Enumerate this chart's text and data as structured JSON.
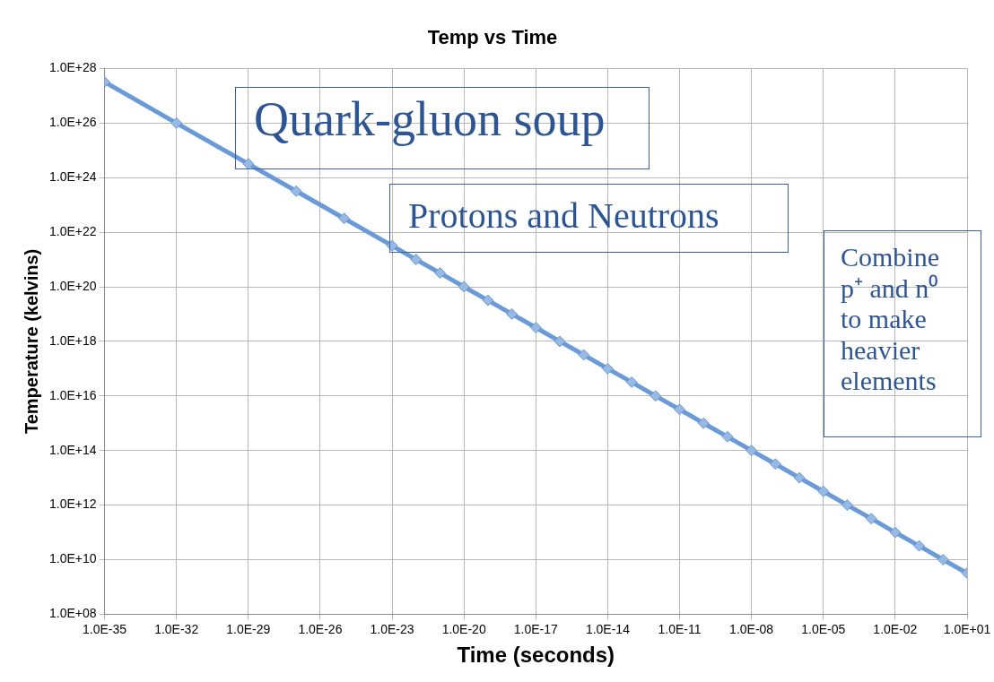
{
  "chart_data": {
    "type": "line",
    "title": "Temp vs Time",
    "xlabel": "Time (seconds)",
    "ylabel": "Temperature (kelvins)",
    "x": [
      1e-35,
      1e-32,
      1e-29,
      1e-27,
      1e-25,
      1e-23,
      1e-22,
      1e-21,
      1e-20,
      1e-19,
      1e-18,
      1e-17,
      1e-16,
      1e-15,
      1e-14,
      1e-13,
      1e-12,
      1e-11,
      1e-10,
      1e-09,
      1e-08,
      1e-07,
      1e-06,
      1e-05,
      0.0001,
      0.001,
      0.01,
      0.1,
      1,
      10
    ],
    "series": [
      {
        "color": "#6a9bd8",
        "values": [
          3.2e+27,
          1e+26,
          3.2e+24,
          3.2e+23,
          3.2e+22,
          3.2e+21,
          1e+21,
          3.2e+20,
          1e+20,
          3.2e+19,
          1e+19,
          3.2e+18,
          1e+18,
          3.2e+17,
          1e+17,
          3.2e+16,
          1e+16,
          3200000000000000.0,
          1000000000000000.0,
          320000000000000.0,
          100000000000000.0,
          32000000000000.0,
          10000000000000.0,
          3200000000000.0,
          1000000000000.0,
          320000000000.0,
          100000000000.0,
          32000000000.0,
          10000000000.0,
          3200000000.0
        ]
      }
    ],
    "log": "xy",
    "xlim": [
      1e-35,
      10
    ],
    "ylim": [
      100000000.0,
      1e+28
    ],
    "xticks": [
      {
        "value": 1e-35,
        "label": "1.0E-35"
      },
      {
        "value": 1e-32,
        "label": "1.0E-32"
      },
      {
        "value": 1e-29,
        "label": "1.0E-29"
      },
      {
        "value": 1e-26,
        "label": "1.0E-26"
      },
      {
        "value": 1e-23,
        "label": "1.0E-23"
      },
      {
        "value": 1e-20,
        "label": "1.0E-20"
      },
      {
        "value": 1e-17,
        "label": "1.0E-17"
      },
      {
        "value": 1e-14,
        "label": "1.0E-14"
      },
      {
        "value": 1e-11,
        "label": "1.0E-11"
      },
      {
        "value": 1e-08,
        "label": "1.0E-08"
      },
      {
        "value": 1e-05,
        "label": "1.0E-05"
      },
      {
        "value": 0.01,
        "label": "1.0E-02"
      },
      {
        "value": 10,
        "label": "1.0E+01"
      }
    ],
    "yticks": [
      {
        "value": 100000000.0,
        "label": "1.0E+08"
      },
      {
        "value": 10000000000.0,
        "label": "1.0E+10"
      },
      {
        "value": 1000000000000.0,
        "label": "1.0E+12"
      },
      {
        "value": 100000000000000.0,
        "label": "1.0E+14"
      },
      {
        "value": 1e+16,
        "label": "1.0E+16"
      },
      {
        "value": 1e+18,
        "label": "1.0E+18"
      },
      {
        "value": 1e+20,
        "label": "1.0E+20"
      },
      {
        "value": 1e+22,
        "label": "1.0E+22"
      },
      {
        "value": 1e+24,
        "label": "1.0E+24"
      },
      {
        "value": 1e+26,
        "label": "1.0E+26"
      },
      {
        "value": 1e+28,
        "label": "1.0E+28"
      }
    ],
    "grid": true,
    "legend": false,
    "marker": "diamond",
    "line_style": "solid",
    "annotations": [
      "Quark-gluon soup",
      "Protons and Neutrons",
      "Combine p⁺ and n⁰ to make heavier elements"
    ]
  }
}
